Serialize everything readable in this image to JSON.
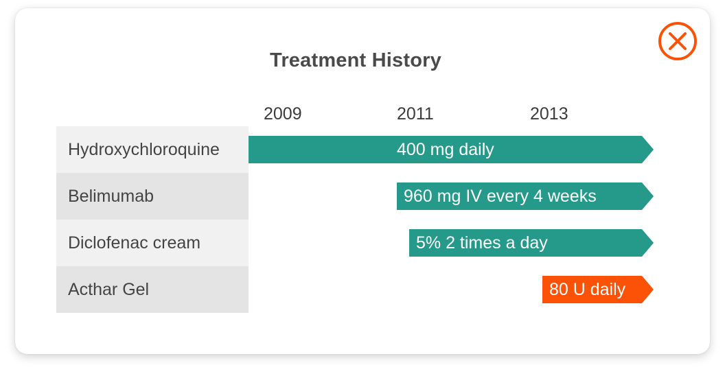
{
  "dialog": {
    "title": "Treatment History",
    "close_icon": "close-circle-icon",
    "accent_color": "#fc5207"
  },
  "timeline": {
    "years": [
      "2009",
      "2011",
      "2013"
    ]
  },
  "treatments": [
    {
      "drug": "Hydroxychloroquine",
      "dose": "400 mg daily",
      "color": "#259a8a"
    },
    {
      "drug": "Belimumab",
      "dose": "960 mg IV every 4 weeks",
      "color": "#259a8a"
    },
    {
      "drug": "Diclofenac cream",
      "dose": "5% 2 times a day",
      "color": "#259a8a"
    },
    {
      "drug": "Acthar Gel",
      "dose": "80 U daily",
      "color": "#fc5207"
    }
  ]
}
